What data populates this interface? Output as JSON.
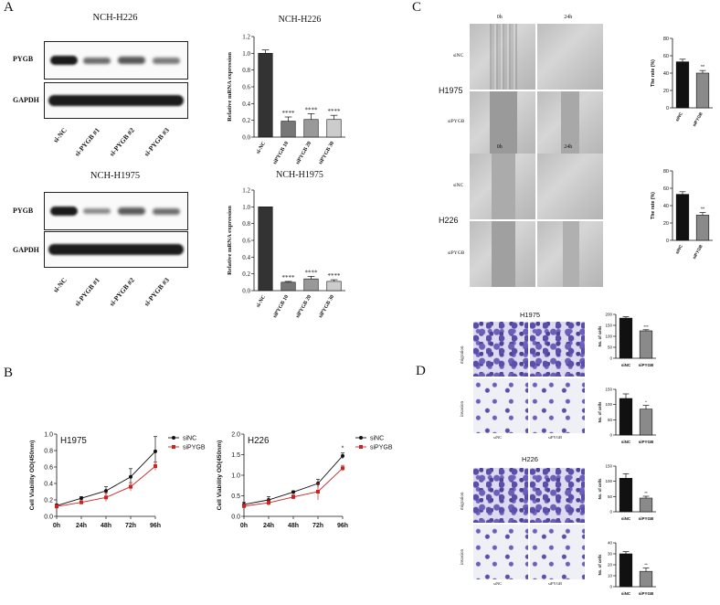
{
  "panels": {
    "a": "A",
    "b": "B",
    "c": "C",
    "d": "D"
  },
  "western_blots": [
    {
      "title": "NCH-H226",
      "rows": [
        "PYGB",
        "GAPDH"
      ],
      "lanes": [
        "si-NC",
        "si-PYGB #1",
        "si-PYGB #2",
        "si-PYGB #3"
      ]
    },
    {
      "title": "NCH-H1975",
      "rows": [
        "PYGB",
        "GAPDH"
      ],
      "lanes": [
        "si-NC",
        "si-PYGB #1",
        "si-PYGB #2",
        "si-PYGB #3"
      ]
    }
  ],
  "wound_assay": {
    "time_labels": [
      "0h",
      "24h"
    ],
    "groups": [
      {
        "cell_line": "H1975",
        "rows": [
          "siNC",
          "siPYGB"
        ]
      },
      {
        "cell_line": "H226",
        "rows": [
          "siNC",
          "siPYGB"
        ]
      }
    ]
  },
  "transwell": {
    "groups": [
      {
        "cell_line": "H1975",
        "rows": [
          "migration",
          "invasion"
        ],
        "cols": [
          "siNC",
          "siPYGB"
        ]
      },
      {
        "cell_line": "H226",
        "rows": [
          "migration",
          "invasion"
        ],
        "cols": [
          "siNC",
          "siPYGB"
        ]
      }
    ]
  },
  "chart_data": [
    {
      "id": "mrna_h226",
      "type": "bar",
      "title": "NCH-H226",
      "ylabel": "Relative mRNA expression",
      "categories": [
        "si-NC",
        "siPYGB 10",
        "siPYGB 20",
        "siPYGB 30"
      ],
      "values": [
        1.0,
        0.19,
        0.21,
        0.21
      ],
      "errors": [
        0.04,
        0.05,
        0.07,
        0.05
      ],
      "annotations": [
        "",
        "****",
        "****",
        "****"
      ],
      "ylim": [
        0,
        1.2
      ],
      "yticks": [
        "0.0",
        "0.2",
        "0.4",
        "0.6",
        "0.8",
        "1.0",
        "1.2"
      ],
      "colors": [
        "#333333",
        "#777777",
        "#999999",
        "#cccccc"
      ]
    },
    {
      "id": "mrna_h1975",
      "type": "bar",
      "title": "NCH-H1975",
      "ylabel": "Relative mRNA expression",
      "categories": [
        "si-NC",
        "siPYGB 10",
        "siPYGB 20",
        "siPYGB 30"
      ],
      "values": [
        1.0,
        0.1,
        0.14,
        0.11
      ],
      "errors": [
        0.0,
        0.01,
        0.03,
        0.02
      ],
      "annotations": [
        "",
        "****",
        "****",
        "****"
      ],
      "ylim": [
        0,
        1.2
      ],
      "yticks": [
        "0.0",
        "0.2",
        "0.4",
        "0.6",
        "0.8",
        "1.0",
        "1.2"
      ],
      "colors": [
        "#333333",
        "#777777",
        "#999999",
        "#cccccc"
      ]
    },
    {
      "id": "wound_h1975",
      "type": "bar",
      "ylabel": "The rate (%)",
      "categories": [
        "siNC",
        "siPYGB"
      ],
      "values": [
        53,
        40
      ],
      "errors": [
        3,
        3
      ],
      "annotations": [
        "",
        "**"
      ],
      "ylim": [
        0,
        80
      ],
      "yticks": [
        "0",
        "20",
        "40",
        "60",
        "80"
      ],
      "colors": [
        "#111111",
        "#8a8a8a"
      ]
    },
    {
      "id": "wound_h226",
      "type": "bar",
      "ylabel": "The rate (%)",
      "categories": [
        "siNC",
        "siPYGB"
      ],
      "values": [
        53,
        29
      ],
      "errors": [
        3,
        3
      ],
      "annotations": [
        "",
        "**"
      ],
      "ylim": [
        0,
        80
      ],
      "yticks": [
        "0",
        "20",
        "40",
        "60",
        "80"
      ],
      "colors": [
        "#111111",
        "#8a8a8a"
      ]
    },
    {
      "id": "trans_h1975_mig",
      "type": "bar",
      "ylabel": "No. of cells",
      "categories": [
        "siNC",
        "siPYGB"
      ],
      "values": [
        183,
        125
      ],
      "errors": [
        6,
        5
      ],
      "annotations": [
        "",
        "***"
      ],
      "ylim": [
        0,
        200
      ],
      "yticks": [
        "0",
        "50",
        "100",
        "150",
        "200"
      ],
      "colors": [
        "#111111",
        "#8a8a8a"
      ]
    },
    {
      "id": "trans_h1975_inv",
      "type": "bar",
      "ylabel": "No. of cells",
      "categories": [
        "siNC",
        "siPYGB"
      ],
      "values": [
        120,
        85
      ],
      "errors": [
        15,
        12
      ],
      "annotations": [
        "",
        "*"
      ],
      "ylim": [
        0,
        150
      ],
      "yticks": [
        "0",
        "50",
        "100",
        "150"
      ],
      "colors": [
        "#111111",
        "#8a8a8a"
      ]
    },
    {
      "id": "trans_h226_mig",
      "type": "bar",
      "ylabel": "No. of cells",
      "categories": [
        "siNC",
        "siPYGB"
      ],
      "values": [
        110,
        45
      ],
      "errors": [
        15,
        6
      ],
      "annotations": [
        "",
        "**"
      ],
      "ylim": [
        0,
        150
      ],
      "yticks": [
        "0",
        "50",
        "100",
        "150"
      ],
      "colors": [
        "#111111",
        "#8a8a8a"
      ]
    },
    {
      "id": "trans_h226_inv",
      "type": "bar",
      "ylabel": "No. of cells",
      "categories": [
        "siNC",
        "siPYGB"
      ],
      "values": [
        30,
        14
      ],
      "errors": [
        2,
        3
      ],
      "annotations": [
        "",
        "**"
      ],
      "ylim": [
        0,
        40
      ],
      "yticks": [
        "0",
        "10",
        "20",
        "30",
        "40"
      ],
      "colors": [
        "#111111",
        "#8a8a8a"
      ]
    },
    {
      "id": "cck8_h1975",
      "type": "line",
      "title": "H1975",
      "ylabel": "Cell Viability OD(450nm)",
      "x": [
        "0h",
        "24h",
        "48h",
        "72h",
        "96h"
      ],
      "ylim": [
        0,
        1.0
      ],
      "yticks": [
        "0.0",
        "0.2",
        "0.4",
        "0.6",
        "0.8",
        "1.0"
      ],
      "series": [
        {
          "name": "siNC",
          "color": "#111111",
          "values": [
            0.13,
            0.22,
            0.31,
            0.48,
            0.79
          ],
          "errors": [
            0.02,
            0.02,
            0.05,
            0.1,
            0.18
          ]
        },
        {
          "name": "siPYGB",
          "color": "#cc2222",
          "values": [
            0.12,
            0.17,
            0.23,
            0.36,
            0.61
          ],
          "errors": [
            0.02,
            0.02,
            0.05,
            0.05,
            0.05
          ]
        }
      ],
      "annotations": [
        "",
        "",
        "",
        "",
        ""
      ]
    },
    {
      "id": "cck8_h226",
      "type": "line",
      "title": "H226",
      "ylabel": "Cell Viability OD(450nm)",
      "x": [
        "0h",
        "24h",
        "48h",
        "72h",
        "96h"
      ],
      "ylim": [
        0,
        2.0
      ],
      "yticks": [
        "0.0",
        "0.5",
        "1.0",
        "1.5",
        "2.0"
      ],
      "series": [
        {
          "name": "siNC",
          "color": "#111111",
          "values": [
            0.29,
            0.4,
            0.59,
            0.8,
            1.47
          ],
          "errors": [
            0.05,
            0.08,
            0.03,
            0.1,
            0.07
          ]
        },
        {
          "name": "siPYGB",
          "color": "#cc2222",
          "values": [
            0.25,
            0.33,
            0.47,
            0.6,
            1.17
          ],
          "errors": [
            0.05,
            0.07,
            0.05,
            0.2,
            0.07
          ]
        }
      ],
      "annotations": [
        "",
        "",
        "",
        "",
        "*"
      ]
    }
  ]
}
